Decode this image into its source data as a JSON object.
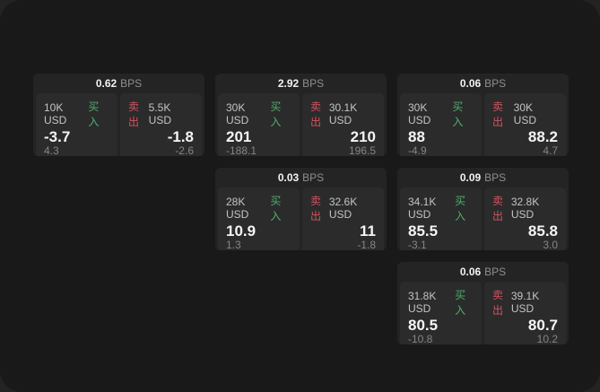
{
  "labels": {
    "bps": "BPS",
    "buy": "买入",
    "sell": "卖出"
  },
  "colors": {
    "buy_green": "#4fae6f",
    "sell_red": "#cf5462",
    "window_bg": "#191919",
    "card_bg": "#242424",
    "panel_bg": "#2b2b2b"
  },
  "cards": [
    {
      "bps": "0.62",
      "buy": {
        "amount": "10K USD",
        "value": "-3.7",
        "sub": "4.3"
      },
      "sell": {
        "amount": "5.5K USD",
        "value": "-1.8",
        "sub": "-2.6"
      }
    },
    {
      "bps": "2.92",
      "buy": {
        "amount": "30K USD",
        "value": "201",
        "sub": "-188.1"
      },
      "sell": {
        "amount": "30.1K USD",
        "value": "210",
        "sub": "196.5"
      }
    },
    {
      "bps": "0.06",
      "buy": {
        "amount": "30K USD",
        "value": "88",
        "sub": "-4.9"
      },
      "sell": {
        "amount": "30K USD",
        "value": "88.2",
        "sub": "4.7"
      }
    },
    {
      "bps": "0.03",
      "buy": {
        "amount": "28K USD",
        "value": "10.9",
        "sub": "1.3"
      },
      "sell": {
        "amount": "32.6K USD",
        "value": "11",
        "sub": "-1.8"
      }
    },
    {
      "bps": "0.09",
      "buy": {
        "amount": "34.1K USD",
        "value": "85.5",
        "sub": "-3.1"
      },
      "sell": {
        "amount": "32.8K USD",
        "value": "85.8",
        "sub": "3.0"
      }
    },
    {
      "bps": "0.06",
      "buy": {
        "amount": "31.8K USD",
        "value": "80.5",
        "sub": "-10.8"
      },
      "sell": {
        "amount": "39.1K USD",
        "value": "80.7",
        "sub": "10.2"
      }
    }
  ]
}
